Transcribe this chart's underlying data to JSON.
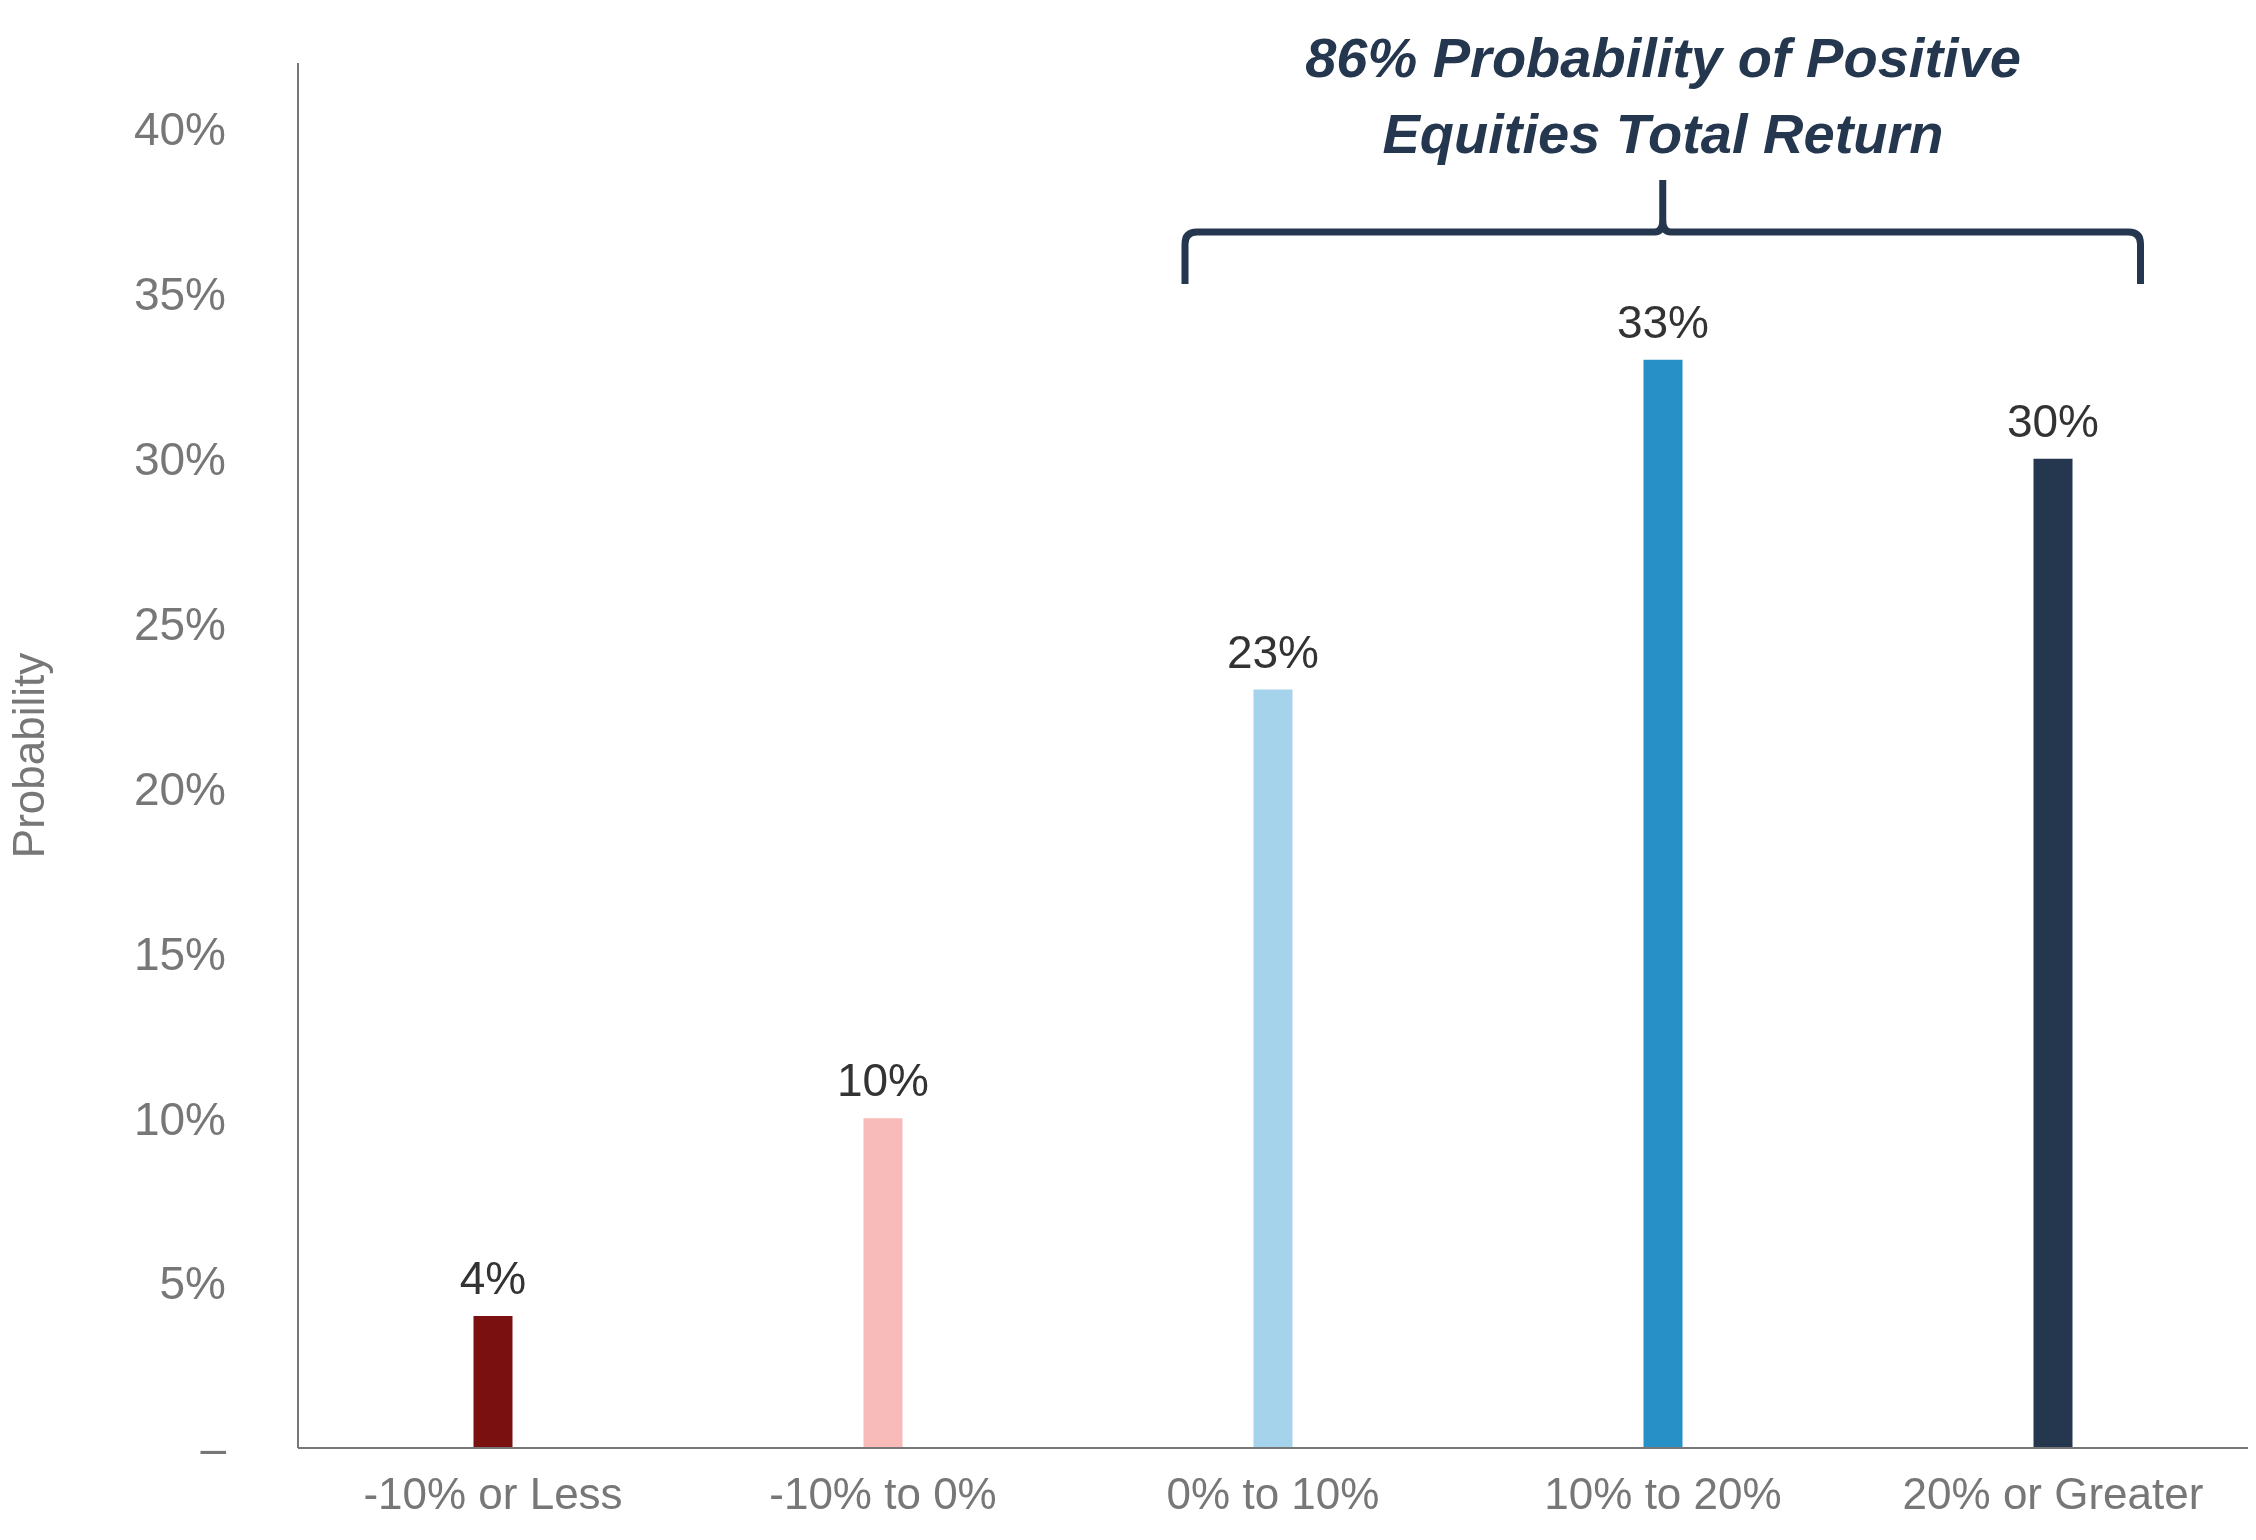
{
  "chart_data": {
    "type": "bar",
    "ylabel": "Probability",
    "categories": [
      "-10% or Less",
      "-10% to 0%",
      "0% to 10%",
      "10% to 20%",
      "20% or Greater"
    ],
    "values": [
      4,
      10,
      23,
      33,
      30
    ],
    "colors": [
      "#7a1010",
      "#f8bbb9",
      "#a6d3ec",
      "#2690c7",
      "#24374f"
    ],
    "value_labels": [
      "4%",
      "10%",
      "23%",
      "33%",
      "30%"
    ],
    "ylim": [
      0,
      42
    ],
    "yticks": [
      {
        "value": 0,
        "label": "–"
      },
      {
        "value": 5,
        "label": "5%"
      },
      {
        "value": 10,
        "label": "10%"
      },
      {
        "value": 15,
        "label": "15%"
      },
      {
        "value": 20,
        "label": "20%"
      },
      {
        "value": 25,
        "label": "25%"
      },
      {
        "value": 30,
        "label": "30%"
      },
      {
        "value": 35,
        "label": "35%"
      },
      {
        "value": 40,
        "label": "40%"
      }
    ],
    "annotations": [
      "86% Probability of Positive Equities Total Return"
    ]
  }
}
